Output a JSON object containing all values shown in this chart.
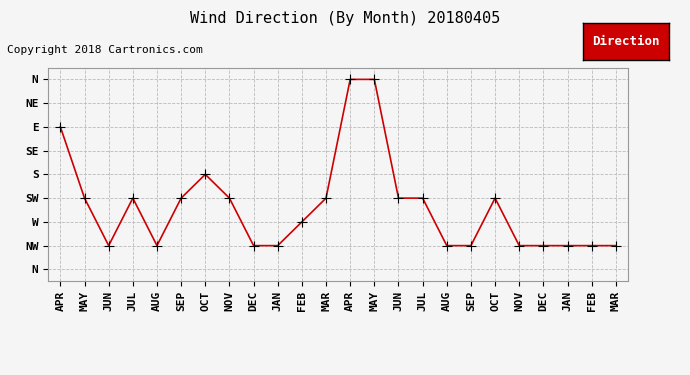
{
  "title": "Wind Direction (By Month) 20180405",
  "copyright": "Copyright 2018 Cartronics.com",
  "legend_label": "Direction",
  "x_labels": [
    "APR",
    "MAY",
    "JUN",
    "JUL",
    "AUG",
    "SEP",
    "OCT",
    "NOV",
    "DEC",
    "JAN",
    "FEB",
    "MAR",
    "APR",
    "MAY",
    "JUN",
    "JUL",
    "AUG",
    "SEP",
    "OCT",
    "NOV",
    "DEC",
    "JAN",
    "FEB",
    "MAR"
  ],
  "y_labels_top_to_bottom": [
    "N",
    "NW",
    "W",
    "SW",
    "S",
    "SE",
    "E",
    "NE",
    "N"
  ],
  "y_numeric": [
    8,
    7,
    6,
    5,
    4,
    3,
    2,
    1,
    0
  ],
  "data_points": [
    2,
    5,
    7,
    5,
    7,
    5,
    4,
    5,
    7,
    7,
    6,
    5,
    0,
    0,
    5,
    5,
    7,
    7,
    5,
    7,
    7,
    7,
    7,
    7
  ],
  "line_color": "#cc0000",
  "marker": "+",
  "marker_size": 7,
  "marker_edge_color": "#000000",
  "grid_color": "#bbbbbb",
  "bg_color": "#f5f5f5",
  "plot_bg_color": "#f5f5f5",
  "legend_bg": "#cc0000",
  "legend_text_color": "#ffffff",
  "title_fontsize": 11,
  "copyright_fontsize": 8,
  "tick_fontsize": 8,
  "legend_fontsize": 9
}
